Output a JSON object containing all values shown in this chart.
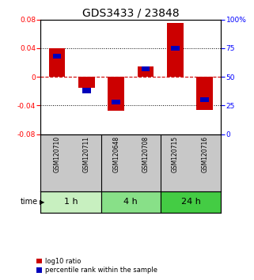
{
  "title": "GDS3433 / 23848",
  "samples": [
    "GSM120710",
    "GSM120711",
    "GSM120648",
    "GSM120708",
    "GSM120715",
    "GSM120716"
  ],
  "log10_ratio": [
    0.04,
    -0.015,
    -0.047,
    0.015,
    0.075,
    -0.046
  ],
  "percentile_rank": [
    68,
    38,
    28,
    57,
    75,
    30
  ],
  "groups": [
    {
      "label": "1 h",
      "start": 0,
      "end": 2,
      "color": "#c8f0c0"
    },
    {
      "label": "4 h",
      "start": 2,
      "end": 4,
      "color": "#88e088"
    },
    {
      "label": "24 h",
      "start": 4,
      "end": 6,
      "color": "#44cc44"
    }
  ],
  "ylim_left": [
    -0.08,
    0.08
  ],
  "ylim_right": [
    0,
    100
  ],
  "yticks_left": [
    -0.08,
    -0.04,
    0.0,
    0.04,
    0.08
  ],
  "yticks_right": [
    0,
    25,
    50,
    75,
    100
  ],
  "bar_color_red": "#cc0000",
  "bar_color_blue": "#0000bb",
  "bar_width": 0.55,
  "blue_bar_width": 0.28,
  "hline_color": "#cc0000",
  "grid_color": "black",
  "bg_color": "white",
  "sample_bg": "#c8c8c8",
  "title_fontsize": 10,
  "tick_fontsize": 6.5,
  "sample_fontsize": 5.5,
  "group_fontsize": 8,
  "legend_fontsize": 6
}
